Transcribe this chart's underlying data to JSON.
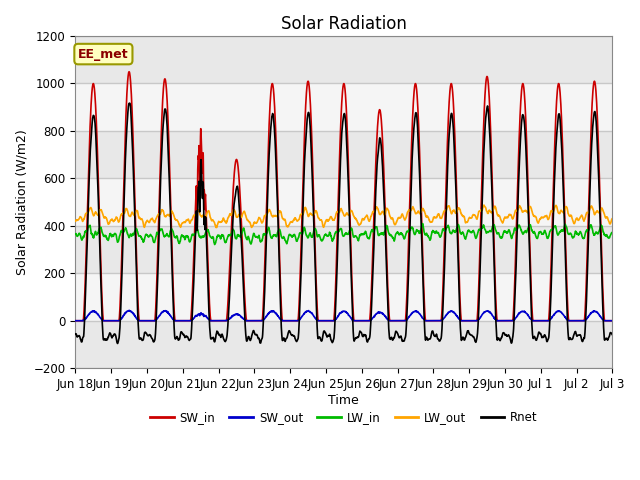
{
  "title": "Solar Radiation",
  "ylabel": "Solar Radiation (W/m2)",
  "xlabel": "Time",
  "ylim": [
    -200,
    1200
  ],
  "annotation": "EE_met",
  "x_tick_labels": [
    "Jun 18",
    "Jun 19",
    "Jun 20",
    "Jun 21",
    "Jun 22",
    "Jun 23",
    "Jun 24",
    "Jun 25",
    "Jun 26",
    "Jun 27",
    "Jun 28",
    "Jun 29",
    "Jun 30",
    "Jul 1",
    "Jul 2",
    "Jul 3"
  ],
  "n_days": 15,
  "colors": {
    "SW_in": "#cc0000",
    "SW_out": "#0000cc",
    "LW_in": "#00bb00",
    "LW_out": "#ffa500",
    "Rnet": "#000000"
  },
  "lw": 1.2,
  "background_color": "#ffffff",
  "plot_bg_color": "#ffffff",
  "grid_color": "#c8c8c8",
  "title_fontsize": 12,
  "label_fontsize": 9,
  "tick_fontsize": 8.5,
  "annotation_color": "#8b0000",
  "annotation_bg": "#ffffc0",
  "annotation_edge": "#999900"
}
